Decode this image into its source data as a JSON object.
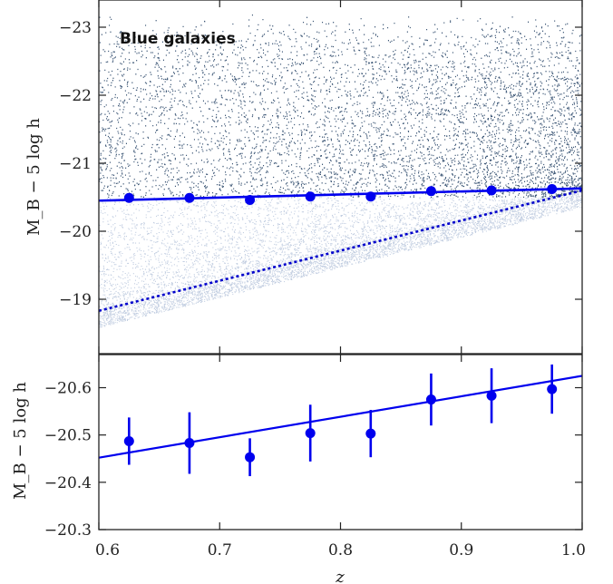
{
  "chart_data": [
    {
      "type": "scatter",
      "title": "Blue galaxies",
      "xlabel": "",
      "ylabel": "M_B − 5 log h",
      "xlim": [
        0.6,
        1.0
      ],
      "ylim": [
        -18.2,
        -23.4
      ],
      "x_ticks": [],
      "y_ticks": [
        -23,
        -22,
        -21,
        -20,
        -19
      ],
      "y_tick_labels": [
        "−23",
        "−22",
        "−21",
        "−20",
        "−19"
      ],
      "grid": false,
      "series": [
        {
          "x": [
            0.625,
            0.675,
            0.725,
            0.775,
            0.825,
            0.875,
            0.925,
            0.975
          ],
          "y": [
            -20.49,
            -20.49,
            -20.46,
            -20.51,
            -20.51,
            -20.59,
            -20.6,
            -20.62
          ]
        }
      ],
      "fit_line": {
        "x": [
          0.6,
          1.0
        ],
        "y": [
          -20.45,
          -20.63
        ]
      },
      "limit_line": {
        "x": [
          0.6,
          1.0
        ],
        "y": [
          -18.83,
          -20.6
        ]
      },
      "background_cloud": {
        "x_range": [
          0.6,
          1.0
        ],
        "faint_bright_limit": -23.2,
        "colors": {
          "dark": "#1b3a5e",
          "light": "#8fa6c9"
        }
      },
      "colors": {
        "points": "#0000ee",
        "fit": "#0000ee",
        "limit": "#0000cc"
      }
    },
    {
      "type": "scatter",
      "xlabel": "z",
      "ylabel": "M_B − 5 log h",
      "xlim": [
        0.6,
        1.0
      ],
      "ylim": [
        -20.3,
        -20.67
      ],
      "x_ticks": [
        0.6,
        0.7,
        0.8,
        0.9,
        1.0
      ],
      "x_tick_labels": [
        "0.6",
        "0.7",
        "0.8",
        "0.9",
        "1.0"
      ],
      "y_ticks": [
        -20.3,
        -20.4,
        -20.5,
        -20.6
      ],
      "y_tick_labels": [
        "−20.3",
        "−20.4",
        "−20.5",
        "−20.6"
      ],
      "grid": false,
      "series": [
        {
          "x": [
            0.625,
            0.675,
            0.725,
            0.775,
            0.825,
            0.875,
            0.925,
            0.975
          ],
          "y": [
            -20.487,
            -20.483,
            -20.453,
            -20.504,
            -20.503,
            -20.575,
            -20.583,
            -20.597
          ],
          "yerr": [
            0.05,
            0.065,
            0.04,
            0.06,
            0.05,
            0.055,
            0.058,
            0.052
          ]
        }
      ],
      "fit_line": {
        "x": [
          0.6,
          1.0
        ],
        "y": [
          -20.452,
          -20.625
        ]
      },
      "colors": {
        "points": "#0000ee",
        "fit": "#0000ee"
      }
    }
  ]
}
